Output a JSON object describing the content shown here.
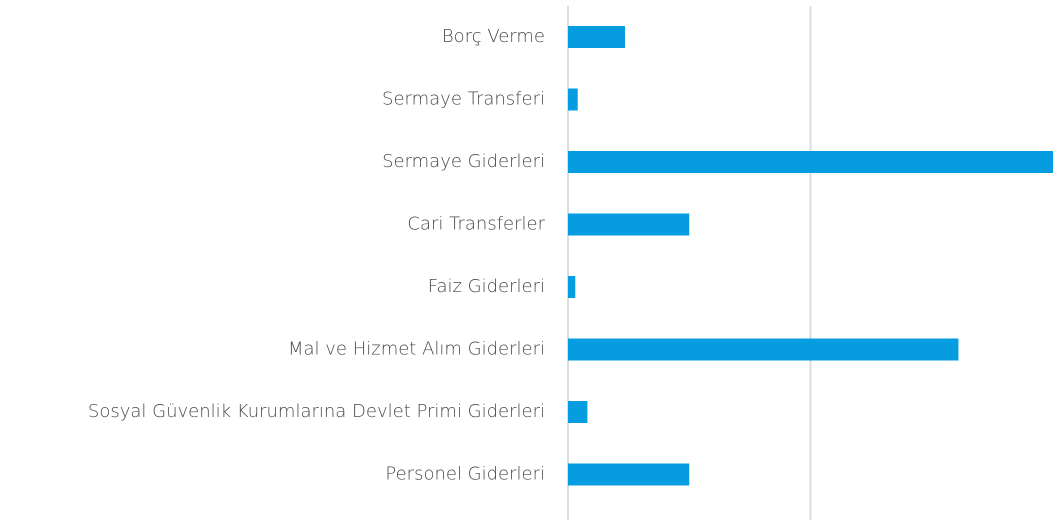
{
  "chart_data": {
    "type": "barh",
    "categories": [
      "Borç Verme",
      "Sermaye Transferi",
      "Sermaye Giderleri",
      "Cari Transferler",
      "Faiz Giderleri",
      "Mal ve Hizmet Alım Giderleri",
      "Sosyal Güvenlik Kurumlarına Devlet Primi Giderleri",
      "Personel Giderleri"
    ],
    "values": [
      0.235,
      0.04,
      2.0,
      0.5,
      0.03,
      1.61,
      0.08,
      0.5
    ],
    "color": "#069de0",
    "xlim": [
      0,
      2
    ],
    "xticks": [
      0,
      1
    ],
    "grid": true
  }
}
